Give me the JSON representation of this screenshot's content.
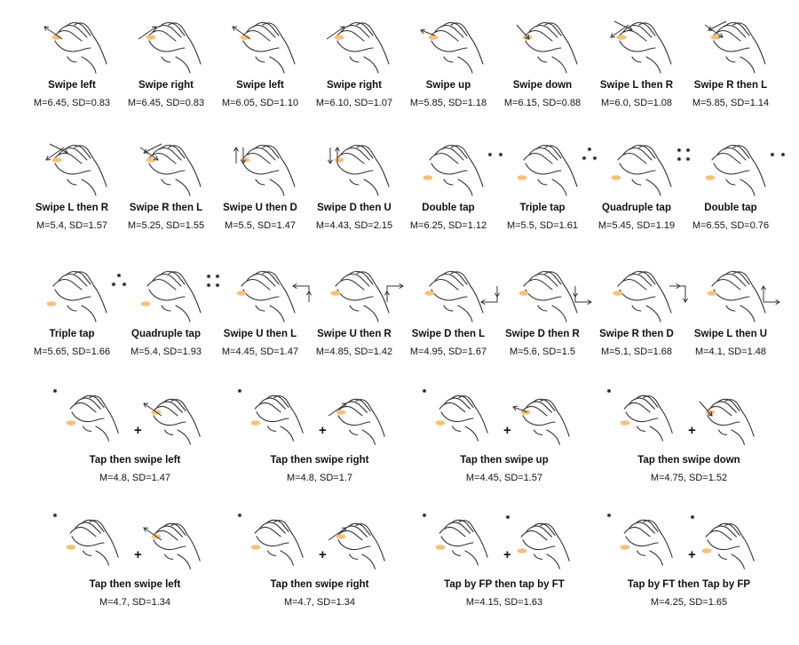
{
  "rows": [
    {
      "cells": [
        {
          "title": "Swipe left",
          "stats": "M=6.45, SD=0.83",
          "marker": {
            "kind": "swipe",
            "dir": "left"
          }
        },
        {
          "title": "Swipe right",
          "stats": "M=6.45, SD=0.83",
          "marker": {
            "kind": "swipe",
            "dir": "right"
          }
        },
        {
          "title": "Swipe left",
          "stats": "M=6.05, SD=1.10",
          "marker": {
            "kind": "swipe",
            "dir": "left"
          }
        },
        {
          "title": "Swipe right",
          "stats": "M=6.10, SD=1.07",
          "marker": {
            "kind": "swipe",
            "dir": "right"
          }
        },
        {
          "title": "Swipe up",
          "stats": "M=5.85, SD=1.18",
          "marker": {
            "kind": "swipe",
            "dir": "up"
          }
        },
        {
          "title": "Swipe down",
          "stats": "M=6.15, SD=0.88",
          "marker": {
            "kind": "swipe",
            "dir": "down"
          }
        },
        {
          "title": "Swipe L then R",
          "stats": "M=6.0, SD=1.08",
          "marker": {
            "kind": "swipe",
            "dir": "lr"
          }
        },
        {
          "title": "Swipe R then L",
          "stats": "M=5.85, SD=1.14",
          "marker": {
            "kind": "swipe",
            "dir": "rl"
          }
        }
      ]
    },
    {
      "cells": [
        {
          "title": "Swipe L then R",
          "stats": "M=5.4, SD=1.57",
          "marker": {
            "kind": "swipe",
            "dir": "lr"
          }
        },
        {
          "title": "Swipe R then L",
          "stats": "M=5.25, SD=1.55",
          "marker": {
            "kind": "swipe",
            "dir": "rl"
          }
        },
        {
          "title": "Swipe U then D",
          "stats": "M=5.5, SD=1.47",
          "marker": {
            "kind": "swipe",
            "dir": "ud"
          }
        },
        {
          "title": "Swipe D then U",
          "stats": "M=4.43, SD=2.15",
          "marker": {
            "kind": "swipe",
            "dir": "du"
          }
        },
        {
          "title": "Double tap",
          "stats": "M=6.25, SD=1.12",
          "marker": {
            "kind": "tap",
            "count": 2
          }
        },
        {
          "title": "Triple tap",
          "stats": "M=5.5, SD=1.61",
          "marker": {
            "kind": "tap",
            "count": 3
          }
        },
        {
          "title": "Quadruple tap",
          "stats": "M=5.45, SD=1.19",
          "marker": {
            "kind": "tap",
            "count": 4
          }
        },
        {
          "title": "Double tap",
          "stats": "M=6.55, SD=0.76",
          "marker": {
            "kind": "tap",
            "count": 2
          }
        }
      ]
    },
    {
      "cells": [
        {
          "title": "Triple tap",
          "stats": "M=5.65, SD=1.66",
          "marker": {
            "kind": "tap",
            "count": 3
          }
        },
        {
          "title": "Quadruple tap",
          "stats": "M=5.4, SD=1.93",
          "marker": {
            "kind": "tap",
            "count": 4
          }
        },
        {
          "title": "Swipe U then L",
          "stats": "M=4.45, SD=1.47",
          "marker": {
            "kind": "corner",
            "shape": "UL"
          }
        },
        {
          "title": "Swipe U then R",
          "stats": "M=4.85, SD=1.42",
          "marker": {
            "kind": "corner",
            "shape": "UR"
          }
        },
        {
          "title": "Swipe D then L",
          "stats": "M=4.95, SD=1.67",
          "marker": {
            "kind": "corner",
            "shape": "DL"
          }
        },
        {
          "title": "Swipe D then R",
          "stats": "M=5.6, SD=1.5",
          "marker": {
            "kind": "corner",
            "shape": "DR"
          }
        },
        {
          "title": "Swipe R then D",
          "stats": "M=5.1, SD=1.68",
          "marker": {
            "kind": "corner",
            "shape": "RD"
          }
        },
        {
          "title": "Swipe L then U",
          "stats": "M=4.1, SD=1.48",
          "marker": {
            "kind": "corner",
            "shape": "LU"
          }
        }
      ]
    },
    {
      "cells": [
        {
          "title": "Tap then swipe left",
          "stats": "M=4.8, SD=1.47",
          "second": {
            "kind": "swipe",
            "dir": "left"
          }
        },
        {
          "title": "Tap then swipe right",
          "stats": "M=4.8, SD=1.7",
          "second": {
            "kind": "swipe",
            "dir": "right"
          }
        },
        {
          "title": "Tap then swipe up",
          "stats": "M=4.45, SD=1.57",
          "second": {
            "kind": "swipe",
            "dir": "up"
          }
        },
        {
          "title": "Tap then swipe down",
          "stats": "M=4.75, SD=1.52",
          "second": {
            "kind": "swipe",
            "dir": "down"
          }
        }
      ]
    },
    {
      "cells": [
        {
          "title": "Tap then swipe left",
          "stats": "M=4.7, SD=1.34",
          "second": {
            "kind": "swipe",
            "dir": "left"
          }
        },
        {
          "title": "Tap then swipe right",
          "stats": "M=4.7, SD=1.34",
          "second": {
            "kind": "swipe",
            "dir": "right"
          }
        },
        {
          "title": "Tap by FP then tap by FT",
          "stats": "M=4.15, SD=1.63",
          "second": {
            "kind": "tap1"
          }
        },
        {
          "title": "Tap by FT then Tap by FP",
          "stats": "M=4.25, SD=1.65",
          "second": {
            "kind": "tap1"
          }
        }
      ]
    }
  ],
  "plus_symbol": "+",
  "colors": {
    "stroke": "#333333",
    "highlight": "#f5c27a",
    "text": "#111111"
  }
}
